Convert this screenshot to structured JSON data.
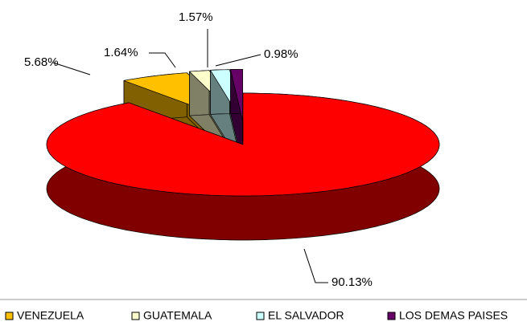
{
  "chart_data": {
    "type": "pie3d",
    "categories": [
      null,
      "VENEZUELA",
      "GUATEMALA",
      "EL SALVADOR",
      "LOS DEMAS PAISES"
    ],
    "values": [
      90.13,
      5.68,
      1.64,
      1.57,
      0.98
    ],
    "value_labels": [
      "90.13%",
      "5.68%",
      "1.64%",
      "1.57%",
      "0.98%"
    ],
    "colors": [
      "#ff0000",
      "#ffc000",
      "#ffffcc",
      "#ccffff",
      "#660066"
    ],
    "legend": "bottom"
  }
}
